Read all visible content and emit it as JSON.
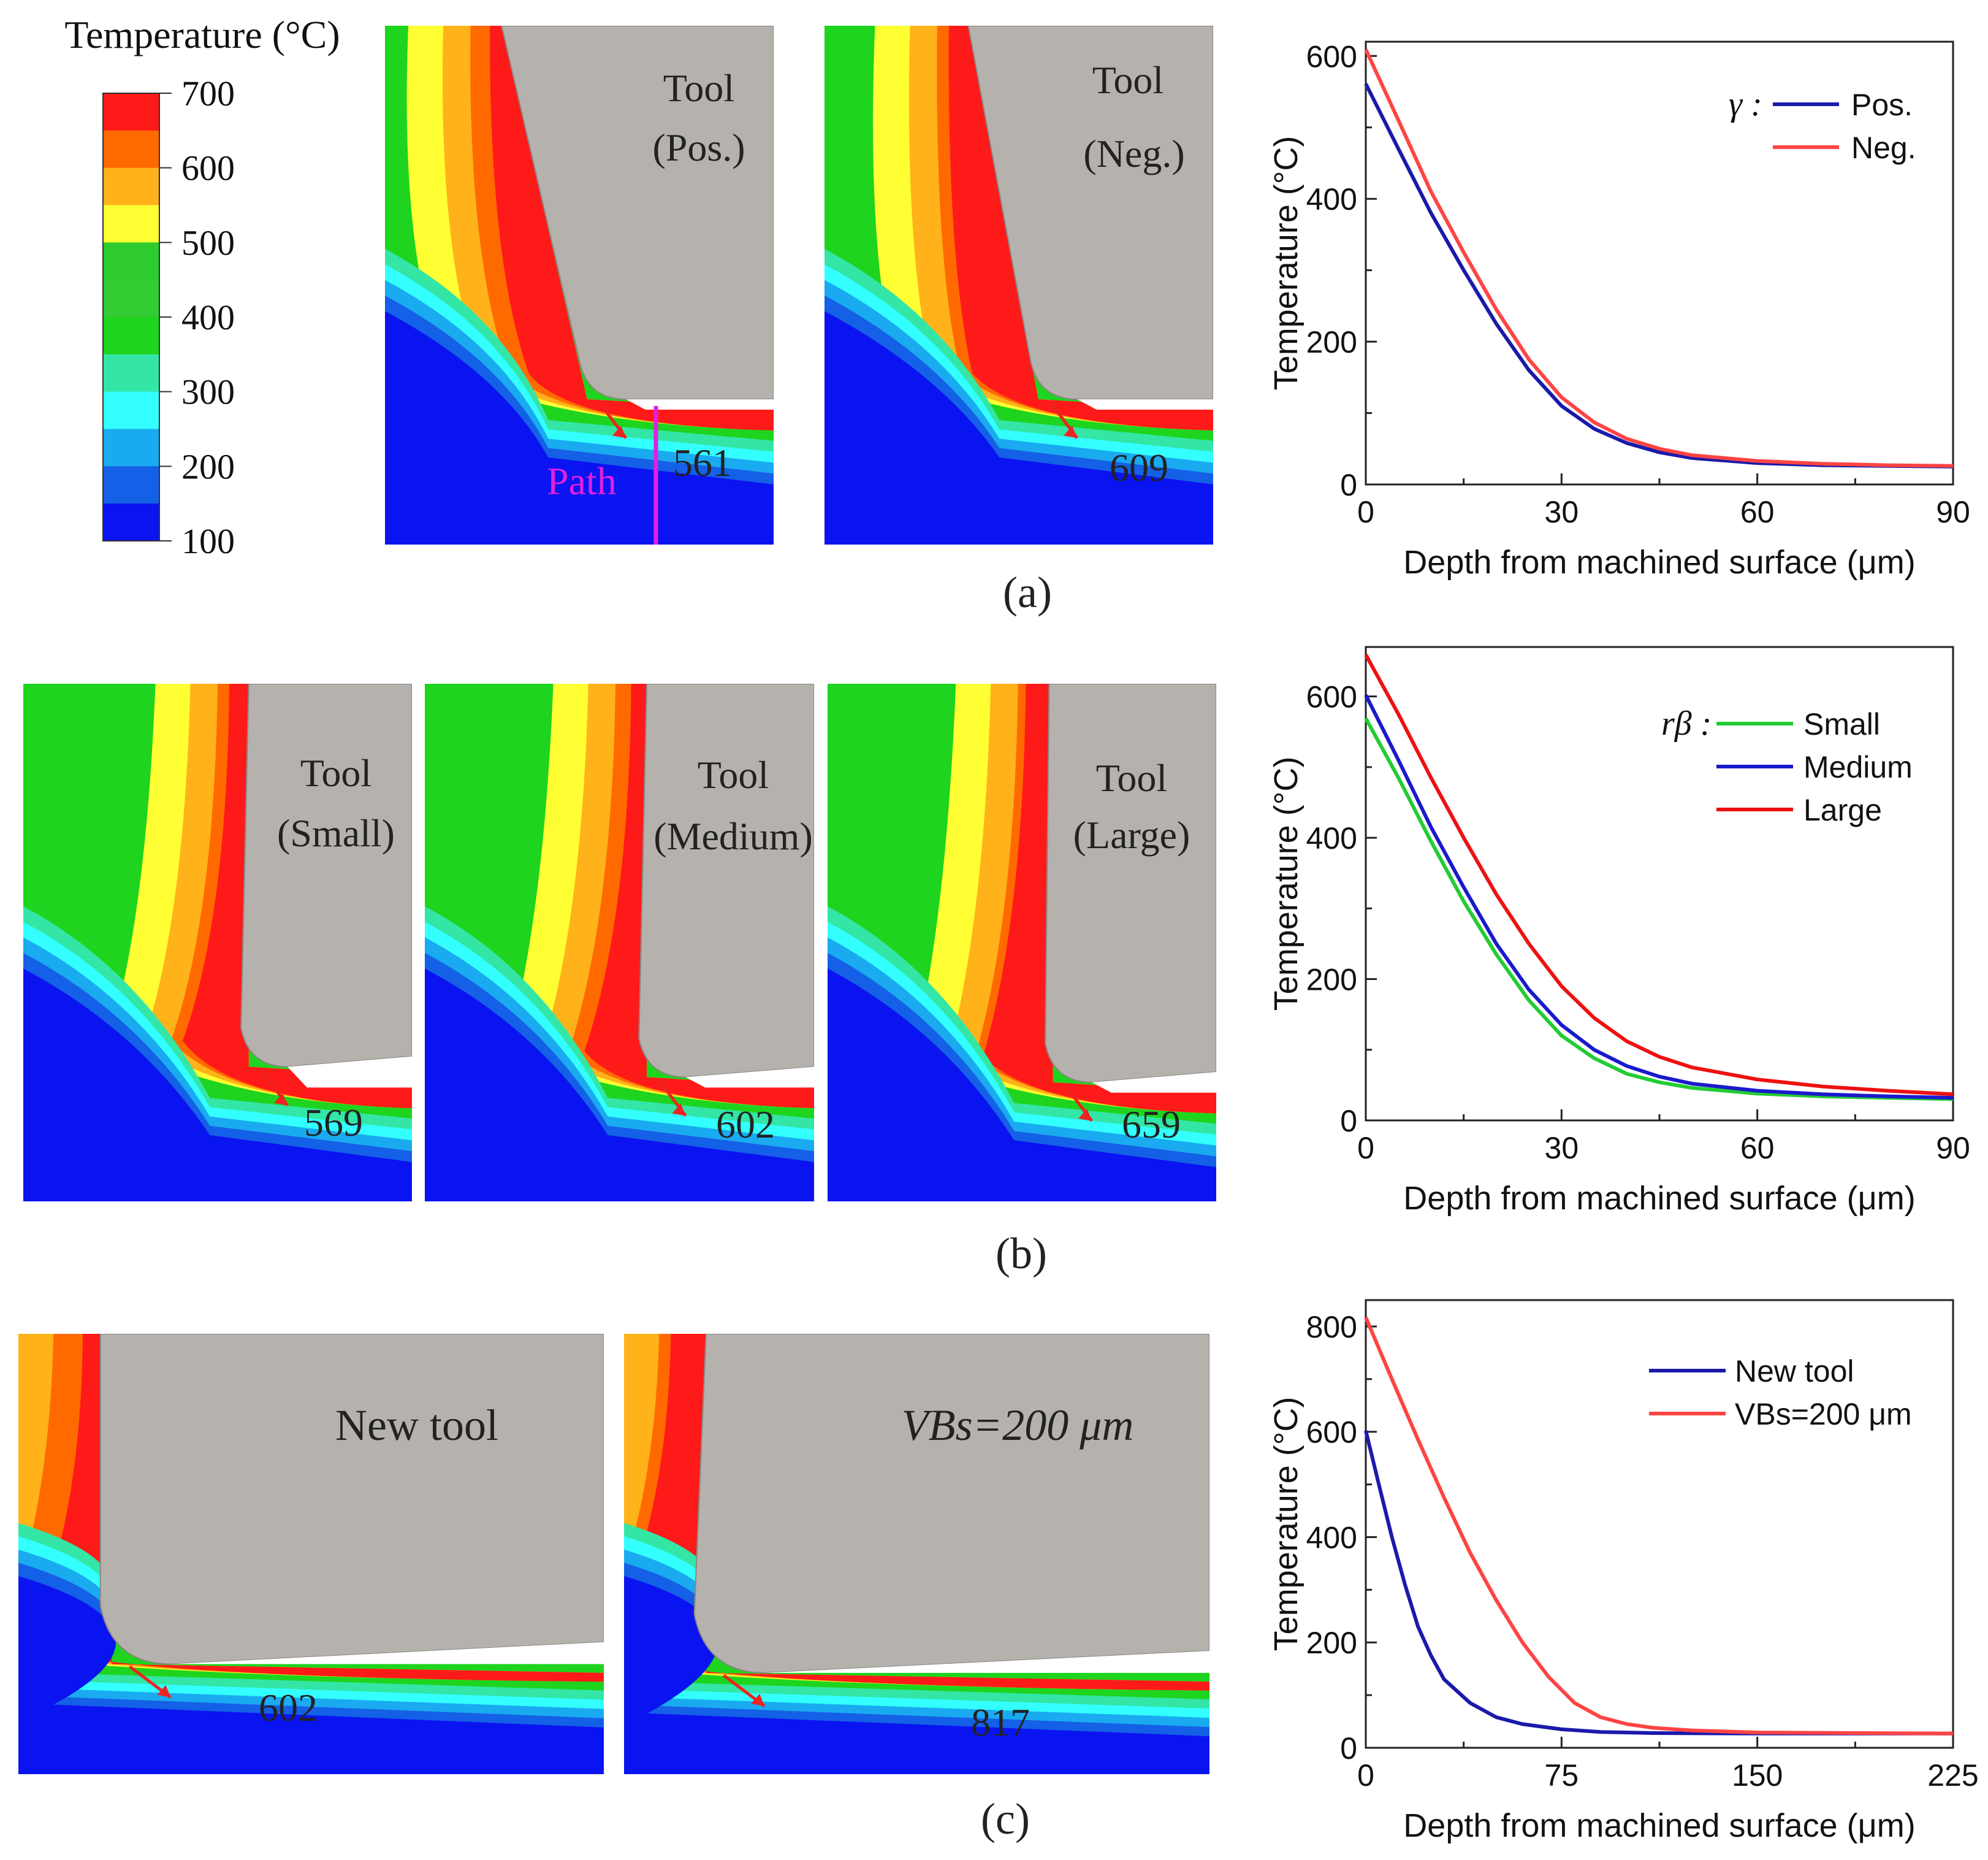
{
  "colorbar": {
    "title": "Temperature (°C)",
    "ticks": [
      "700",
      "600",
      "500",
      "400",
      "300",
      "200",
      "100"
    ],
    "colors": [
      "#ff1a1a",
      "#ff6a00",
      "#ffb21a",
      "#ffff33",
      "#2ecc2e",
      "#33cc33",
      "#1ed41e",
      "#33e6a6",
      "#33ffff",
      "#1aaaf0",
      "#1460e6",
      "#0a14f0"
    ]
  },
  "panels": {
    "a": {
      "label": "(a)",
      "sims": [
        {
          "tool_label_1": "Tool",
          "tool_label_2": "(Pos.)",
          "value": "561",
          "path_label": "Path"
        },
        {
          "tool_label_1": "Tool",
          "tool_label_2": "(Neg.)",
          "value": "609"
        }
      ]
    },
    "b": {
      "label": "(b)",
      "sims": [
        {
          "tool_label_1": "Tool",
          "tool_label_2": "(Small)",
          "value": "569"
        },
        {
          "tool_label_1": "Tool",
          "tool_label_2": "(Medium)",
          "value": "602"
        },
        {
          "tool_label_1": "Tool",
          "tool_label_2": "(Large)",
          "value": "659"
        }
      ]
    },
    "c": {
      "label": "(c)",
      "sims": [
        {
          "tool_label_1": "New tool",
          "value": "602"
        },
        {
          "tool_label_1": "VBs=200 μm",
          "value": "817"
        }
      ]
    }
  },
  "chart_data": [
    {
      "type": "line",
      "panel": "a",
      "title": "",
      "xlabel": "Depth from machined surface (μm)",
      "ylabel": "Temperature (°C)",
      "xlim": [
        0,
        90
      ],
      "ylim": [
        0,
        620
      ],
      "xticks": [
        0,
        30,
        60,
        90
      ],
      "yticks": [
        0,
        200,
        400,
        600
      ],
      "legend_title": "γ :",
      "legend_position": "top-right",
      "series": [
        {
          "name": "Pos.",
          "color": "#1a1aaa",
          "x": [
            0,
            5,
            10,
            15,
            20,
            25,
            30,
            35,
            40,
            45,
            50,
            60,
            70,
            80,
            90
          ],
          "y": [
            561,
            470,
            380,
            300,
            225,
            160,
            110,
            78,
            58,
            45,
            37,
            30,
            27,
            26,
            25
          ]
        },
        {
          "name": "Neg.",
          "color": "#ff4444",
          "x": [
            0,
            5,
            10,
            15,
            20,
            25,
            30,
            35,
            40,
            45,
            50,
            60,
            70,
            80,
            90
          ],
          "y": [
            609,
            510,
            410,
            325,
            245,
            175,
            122,
            87,
            64,
            50,
            41,
            33,
            29,
            27,
            26
          ]
        }
      ]
    },
    {
      "type": "line",
      "panel": "b",
      "title": "",
      "xlabel": "Depth from machined surface (μm)",
      "ylabel": "Temperature (°C)",
      "xlim": [
        0,
        90
      ],
      "ylim": [
        0,
        670
      ],
      "xticks": [
        0,
        30,
        60,
        90
      ],
      "yticks": [
        0,
        200,
        400,
        600
      ],
      "legend_title": "rβ :",
      "legend_position": "top-right",
      "series": [
        {
          "name": "Small",
          "color": "#22cc33",
          "x": [
            0,
            5,
            10,
            15,
            20,
            25,
            30,
            35,
            40,
            45,
            50,
            60,
            70,
            80,
            90
          ],
          "y": [
            569,
            485,
            395,
            310,
            235,
            170,
            120,
            88,
            66,
            54,
            46,
            38,
            34,
            32,
            30
          ]
        },
        {
          "name": "Medium",
          "color": "#1a1acc",
          "x": [
            0,
            5,
            10,
            15,
            20,
            25,
            30,
            35,
            40,
            45,
            50,
            60,
            70,
            80,
            90
          ],
          "y": [
            602,
            510,
            415,
            330,
            250,
            185,
            135,
            100,
            77,
            62,
            52,
            42,
            37,
            34,
            32
          ]
        },
        {
          "name": "Large",
          "color": "#ee1111",
          "x": [
            0,
            5,
            10,
            15,
            20,
            25,
            30,
            35,
            40,
            45,
            50,
            60,
            70,
            80,
            90
          ],
          "y": [
            659,
            575,
            485,
            400,
            320,
            250,
            190,
            145,
            112,
            90,
            75,
            58,
            48,
            42,
            37
          ]
        }
      ]
    },
    {
      "type": "line",
      "panel": "c",
      "title": "",
      "xlabel": "Depth from machined surface (μm)",
      "ylabel": "Temperature (°C)",
      "xlim": [
        0,
        225
      ],
      "ylim": [
        0,
        850
      ],
      "xticks": [
        0,
        75,
        150,
        225
      ],
      "yticks": [
        0,
        200,
        400,
        600,
        800
      ],
      "legend_position": "top-right",
      "series": [
        {
          "name": "New tool",
          "color": "#1a1aaa",
          "x": [
            0,
            5,
            10,
            15,
            20,
            25,
            30,
            40,
            50,
            60,
            75,
            90,
            110,
            150,
            225
          ],
          "y": [
            602,
            500,
            400,
            310,
            230,
            175,
            130,
            85,
            58,
            45,
            35,
            30,
            28,
            27,
            27
          ]
        },
        {
          "name": "VBs=200 μm",
          "color": "#ff4444",
          "x": [
            0,
            10,
            20,
            30,
            40,
            50,
            60,
            70,
            80,
            90,
            100,
            110,
            125,
            150,
            225
          ],
          "y": [
            817,
            700,
            585,
            475,
            370,
            280,
            200,
            135,
            85,
            58,
            45,
            38,
            33,
            29,
            27
          ]
        }
      ]
    }
  ]
}
